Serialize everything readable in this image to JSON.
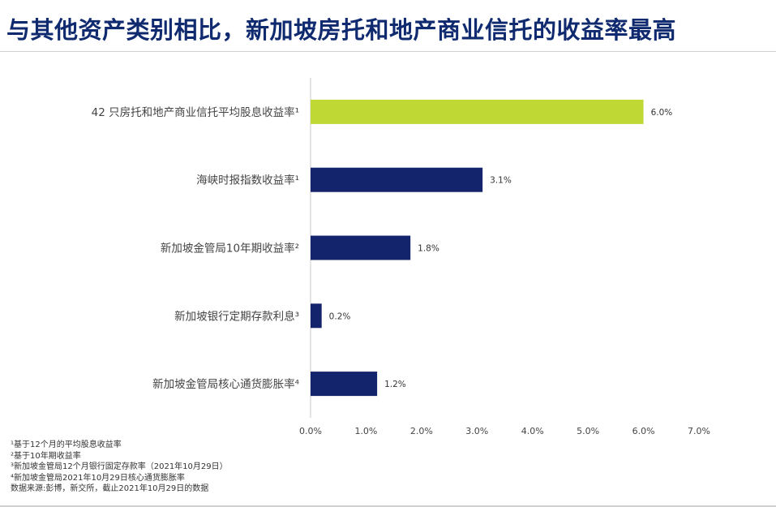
{
  "title": "与其他资产类别相比，新加坡房托和地产商业信托的收益率最高",
  "colors": {
    "title": "#0f2a6e",
    "highlight": "#bfd833",
    "navy": "#14246c"
  },
  "chart_data": {
    "type": "bar",
    "orientation": "horizontal",
    "categories": [
      "42 只房托和地产商业信托平均股息收益率¹",
      "海峡时报指数收益率¹",
      "新加坡金管局10年期收益率²",
      "新加坡银行定期存款利息³",
      "新加坡金管局核心通货膨胀率⁴"
    ],
    "values": [
      6.0,
      3.1,
      1.8,
      0.2,
      1.2
    ],
    "value_labels": [
      "6.0%",
      "3.1%",
      "1.8%",
      "0.2%",
      "1.2%"
    ],
    "bar_colors": [
      "#bfd833",
      "#14246c",
      "#14246c",
      "#14246c",
      "#14246c"
    ],
    "xlim": [
      0,
      7
    ],
    "xticks": [
      0,
      1,
      2,
      3,
      4,
      5,
      6,
      7
    ],
    "xtick_labels": [
      "0.0%",
      "1.0%",
      "2.0%",
      "3.0%",
      "4.0%",
      "5.0%",
      "6.0%",
      "7.0%"
    ],
    "grid": false
  },
  "footnotes": [
    "¹基于12个月的平均股息收益率",
    "²基于10年期收益率",
    "³新加坡金管局12个月银行固定存款率（2021年10月29日）",
    "⁴新加坡金管局2021年10月29日核心通货膨胀率",
    "数据来源:彭博，新交所，截止2021年10月29日的数据"
  ]
}
